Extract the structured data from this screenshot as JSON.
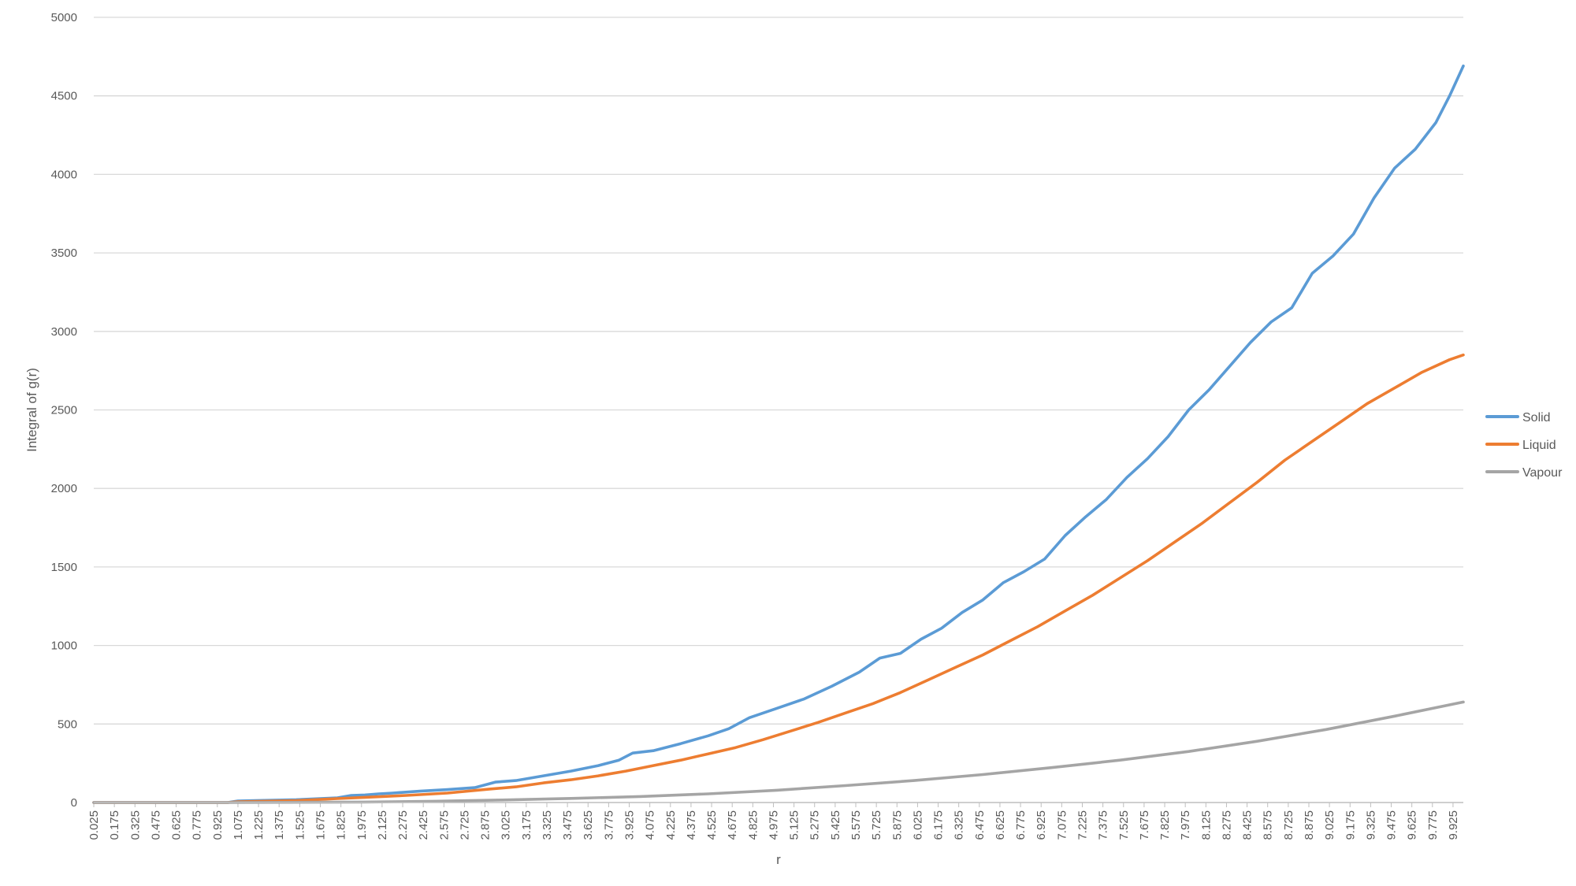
{
  "chart_data": {
    "type": "line",
    "title": "",
    "xlabel": "r",
    "ylabel": "Integral of g(r)",
    "ylim": [
      0,
      5000
    ],
    "y_ticks": [
      0,
      500,
      1000,
      1500,
      2000,
      2500,
      3000,
      3500,
      4000,
      4500,
      5000
    ],
    "x_range": [
      0.025,
      10.0
    ],
    "x_tick_labels": [
      "0.025",
      "0.175",
      "0.325",
      "0.475",
      "0.625",
      "0.775",
      "0.925",
      "1.075",
      "1.225",
      "1.375",
      "1.525",
      "1.675",
      "1.825",
      "1.975",
      "2.125",
      "2.275",
      "2.425",
      "2.575",
      "2.725",
      "2.875",
      "3.025",
      "3.175",
      "3.325",
      "3.475",
      "3.625",
      "3.775",
      "3.925",
      "4.075",
      "4.225",
      "4.375",
      "4.525",
      "4.675",
      "4.825",
      "4.975",
      "5.125",
      "5.275",
      "5.425",
      "5.575",
      "5.725",
      "5.875",
      "6.025",
      "6.175",
      "6.325",
      "6.475",
      "6.625",
      "6.775",
      "6.925",
      "7.075",
      "7.225",
      "7.375",
      "7.525",
      "7.675",
      "7.825",
      "7.975",
      "8.125",
      "8.275",
      "8.425",
      "8.575",
      "8.725",
      "8.875",
      "9.025",
      "9.175",
      "9.325",
      "9.475",
      "9.625",
      "9.775",
      "9.925"
    ],
    "grid": "horizontal",
    "legend_position": "right",
    "series": [
      {
        "name": "Solid",
        "color": "#5b9bd5",
        "x": [
          0.025,
          0.5,
          1.0,
          1.075,
          1.2,
          1.5,
          1.8,
          1.9,
          2.0,
          2.1,
          2.2,
          2.4,
          2.6,
          2.8,
          2.95,
          3.1,
          3.3,
          3.5,
          3.7,
          3.85,
          3.95,
          4.1,
          4.3,
          4.5,
          4.65,
          4.8,
          5.0,
          5.2,
          5.4,
          5.6,
          5.75,
          5.9,
          6.05,
          6.2,
          6.35,
          6.5,
          6.65,
          6.8,
          6.95,
          7.1,
          7.25,
          7.4,
          7.55,
          7.7,
          7.85,
          8.0,
          8.15,
          8.3,
          8.45,
          8.6,
          8.75,
          8.9,
          9.05,
          9.2,
          9.35,
          9.5,
          9.65,
          9.8,
          9.9,
          10.0
        ],
        "y": [
          0,
          0,
          0,
          10,
          12,
          18,
          30,
          45,
          48,
          55,
          60,
          72,
          82,
          95,
          130,
          140,
          170,
          200,
          235,
          270,
          315,
          330,
          375,
          425,
          470,
          540,
          600,
          660,
          740,
          830,
          920,
          950,
          1040,
          1110,
          1210,
          1290,
          1400,
          1470,
          1550,
          1700,
          1820,
          1930,
          2070,
          2190,
          2330,
          2500,
          2630,
          2780,
          2930,
          3060,
          3150,
          3370,
          3480,
          3620,
          3850,
          4040,
          4160,
          4330,
          4500,
          4690
        ]
      },
      {
        "name": "Liquid",
        "color": "#ed7d31",
        "x": [
          0.025,
          1.0,
          1.075,
          1.5,
          1.8,
          2.0,
          2.3,
          2.6,
          2.9,
          3.1,
          3.3,
          3.5,
          3.7,
          3.9,
          4.1,
          4.3,
          4.5,
          4.7,
          4.9,
          5.1,
          5.3,
          5.5,
          5.7,
          5.9,
          6.1,
          6.3,
          6.5,
          6.7,
          6.9,
          7.1,
          7.3,
          7.5,
          7.7,
          7.9,
          8.1,
          8.3,
          8.5,
          8.7,
          8.9,
          9.1,
          9.3,
          9.5,
          9.7,
          9.9,
          10.0
        ],
        "y": [
          0,
          0,
          5,
          12,
          25,
          33,
          45,
          60,
          85,
          100,
          125,
          145,
          170,
          200,
          235,
          270,
          310,
          350,
          400,
          455,
          510,
          570,
          630,
          700,
          780,
          860,
          940,
          1030,
          1120,
          1220,
          1320,
          1430,
          1540,
          1660,
          1780,
          1910,
          2040,
          2180,
          2300,
          2420,
          2540,
          2640,
          2740,
          2820,
          2850
        ]
      },
      {
        "name": "Vapour",
        "color": "#a5a5a5",
        "x": [
          0.025,
          1.0,
          2.0,
          2.5,
          3.0,
          3.5,
          4.0,
          4.5,
          5.0,
          5.5,
          6.0,
          6.5,
          7.0,
          7.5,
          8.0,
          8.5,
          9.0,
          9.5,
          10.0
        ],
        "y": [
          0,
          0,
          3,
          8,
          16,
          26,
          38,
          55,
          78,
          108,
          140,
          178,
          222,
          270,
          325,
          390,
          465,
          550,
          640
        ]
      }
    ]
  }
}
